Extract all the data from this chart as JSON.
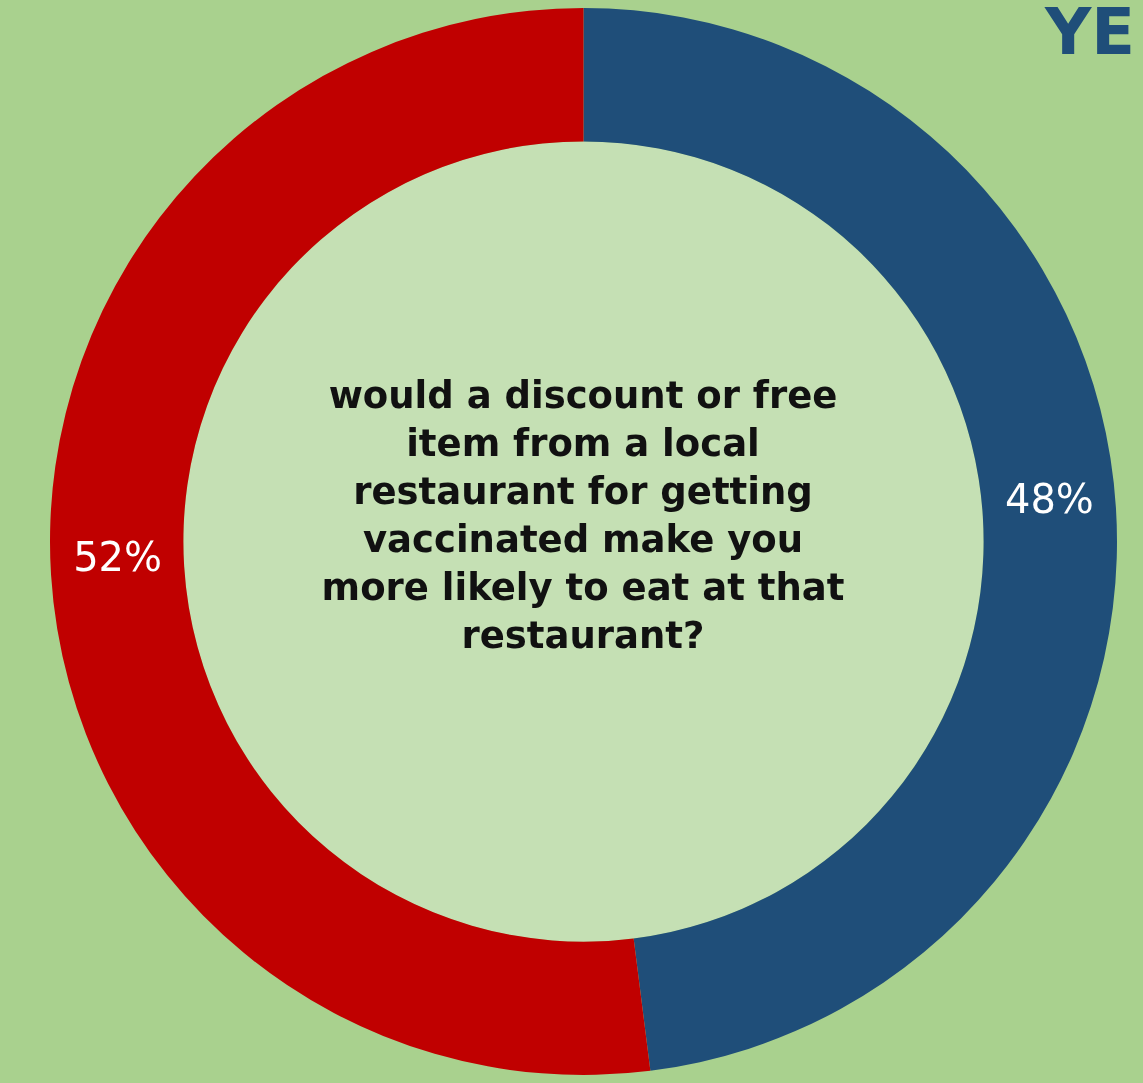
{
  "chart_data": {
    "type": "donut",
    "title": "would a discount or free item from a local restaurant for getting vaccinated make you more likely to eat at that restaurant?",
    "categories": [
      null,
      null
    ],
    "values": [
      48,
      52
    ],
    "colors": [
      "#1f4e79",
      "#c00000"
    ],
    "value_labels": [
      "48%",
      "52%"
    ],
    "annotations": [
      "YE"
    ]
  }
}
